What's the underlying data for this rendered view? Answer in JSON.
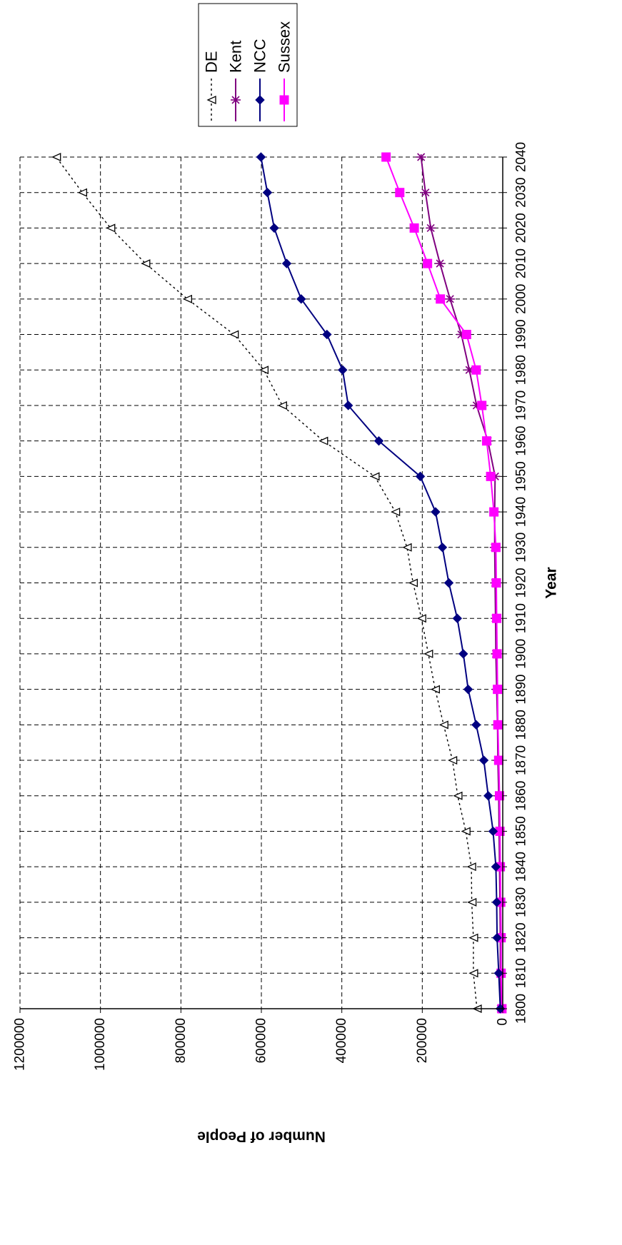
{
  "chart_data": {
    "type": "line",
    "orientation": "rotated-90-clockwise",
    "xlabel": "Year",
    "ylabel": "Number of People",
    "x": [
      1800,
      1810,
      1820,
      1830,
      1840,
      1850,
      1860,
      1870,
      1880,
      1890,
      1900,
      1910,
      1920,
      1930,
      1940,
      1950,
      1960,
      1970,
      1980,
      1990,
      2000,
      2010,
      2020,
      2030,
      2040
    ],
    "x_ticks": [
      1800,
      1810,
      1820,
      1830,
      1840,
      1850,
      1860,
      1870,
      1880,
      1890,
      1900,
      1910,
      1920,
      1930,
      1940,
      1950,
      1960,
      1970,
      1980,
      1990,
      2000,
      2010,
      2020,
      2030,
      2040
    ],
    "y_ticks": [
      0,
      200000,
      400000,
      600000,
      800000,
      1000000,
      1200000
    ],
    "xlim": [
      1800,
      2040
    ],
    "ylim": [
      0,
      1200000
    ],
    "grid": true,
    "legend_position": "top-right",
    "series": [
      {
        "name": "DE",
        "color": "#000000",
        "line_style": "dotted",
        "marker": "open-triangle",
        "values": [
          64000,
          73000,
          73000,
          77000,
          78000,
          92000,
          112000,
          125000,
          147000,
          168000,
          185000,
          202000,
          223000,
          238000,
          267000,
          318000,
          446000,
          548000,
          594000,
          668000,
          784000,
          888000,
          975000,
          1045000,
          1110000
        ]
      },
      {
        "name": "Kent",
        "color": "#800080",
        "line_style": "solid",
        "marker": "asterisk",
        "values": [
          5000,
          6000,
          6000,
          7000,
          8000,
          9000,
          10000,
          12000,
          13000,
          15000,
          17000,
          18000,
          19000,
          20000,
          20000,
          19000,
          37000,
          65000,
          83000,
          103000,
          131000,
          156000,
          179000,
          192000,
          203000
        ]
      },
      {
        "name": "NCC",
        "color": "#000080",
        "line_style": "solid",
        "marker": "filled-diamond",
        "values": [
          6000,
          10000,
          14000,
          15000,
          17000,
          24000,
          36000,
          47000,
          66000,
          86000,
          98000,
          113000,
          134000,
          150000,
          167000,
          205000,
          308000,
          384000,
          398000,
          437000,
          501000,
          537000,
          568000,
          585000,
          601000
        ]
      },
      {
        "name": "Sussex",
        "color": "#ff00ff",
        "line_style": "solid",
        "marker": "filled-square",
        "values": [
          2000,
          4000,
          4000,
          5000,
          6000,
          7000,
          8000,
          10000,
          12000,
          13000,
          14000,
          15000,
          16000,
          17000,
          22000,
          30000,
          40000,
          52000,
          66000,
          90000,
          155000,
          187000,
          220000,
          256000,
          290000
        ]
      }
    ]
  }
}
